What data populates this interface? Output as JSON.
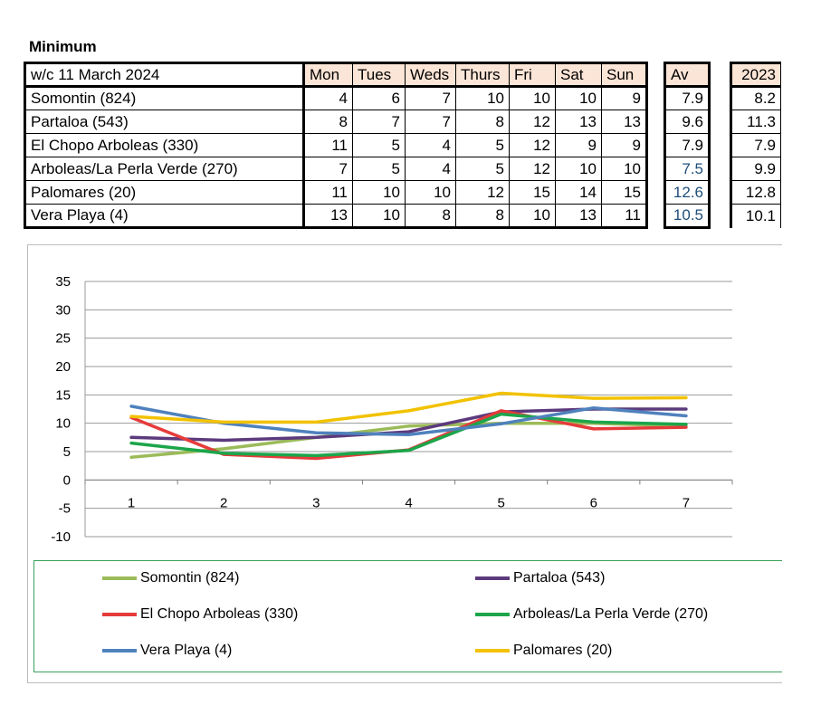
{
  "title": "Minimum",
  "table": {
    "week_label": "w/c  11 March 2024",
    "days": [
      "Mon",
      "Tues",
      "Weds",
      "Thurs",
      "Fri",
      "Sat",
      "Sun"
    ],
    "av_label": "Av",
    "year_label": "2023",
    "rows": [
      {
        "name": "Somontin (824)",
        "values": [
          "4",
          "6",
          "7",
          "10",
          "10",
          "10",
          "9"
        ],
        "av": "7.9",
        "year": "8.2"
      },
      {
        "name": "Partaloa (543)",
        "values": [
          "8",
          "7",
          "7",
          "8",
          "12",
          "13",
          "13"
        ],
        "av": "9.6",
        "year": "11.3"
      },
      {
        "name": "El Chopo Arboleas (330)",
        "values": [
          "11",
          "5",
          "4",
          "5",
          "12",
          "9",
          "9"
        ],
        "av": "7.9",
        "year": "7.9"
      },
      {
        "name": "Arboleas/La Perla Verde (270)",
        "values": [
          "7",
          "5",
          "4",
          "5",
          "12",
          "10",
          "10"
        ],
        "av": "7.5",
        "year": "9.9"
      },
      {
        "name": "Palomares (20)",
        "values": [
          "11",
          "10",
          "10",
          "12",
          "15",
          "14",
          "15"
        ],
        "av": "12.6",
        "year": "12.8"
      },
      {
        "name": "Vera Playa (4)",
        "values": [
          "13",
          "10",
          "8",
          "8",
          "10",
          "13",
          "11"
        ],
        "av": "10.5",
        "year": "10.1"
      }
    ],
    "av_blue_rows": [
      3,
      4,
      5
    ]
  },
  "chart_data": {
    "type": "line",
    "x": [
      1,
      2,
      3,
      4,
      5,
      6,
      7
    ],
    "ylim": [
      -10,
      35
    ],
    "yticks": [
      -10,
      -5,
      0,
      5,
      10,
      15,
      20,
      25,
      30,
      35
    ],
    "grid": true,
    "legend_position": "bottom",
    "series": [
      {
        "name": "Somontin (824)",
        "color": "#9bbb59",
        "values": [
          4,
          5.5,
          7.5,
          9.5,
          10,
          10,
          9.5
        ]
      },
      {
        "name": "Partaloa (543)",
        "color": "#5c3a7d",
        "values": [
          7.5,
          7,
          7.5,
          8.5,
          12,
          12.5,
          12.5
        ]
      },
      {
        "name": "El Chopo Arboleas (330)",
        "color": "#e63b3b",
        "values": [
          11,
          4.5,
          3.8,
          5.3,
          12.2,
          9,
          9.3
        ]
      },
      {
        "name": "Arboleas/La Perla Verde (270)",
        "color": "#1ca54a",
        "values": [
          6.5,
          4.7,
          4.3,
          5.2,
          11.6,
          10.2,
          9.8
        ]
      },
      {
        "name": "Vera Playa (4)",
        "color": "#4f81bd",
        "values": [
          13,
          10,
          8.3,
          8,
          9.9,
          12.7,
          11.3
        ]
      },
      {
        "name": "Palomares (20)",
        "color": "#f2c200",
        "values": [
          11.2,
          10.2,
          10.2,
          12.2,
          15.3,
          14.4,
          14.5
        ]
      }
    ]
  }
}
